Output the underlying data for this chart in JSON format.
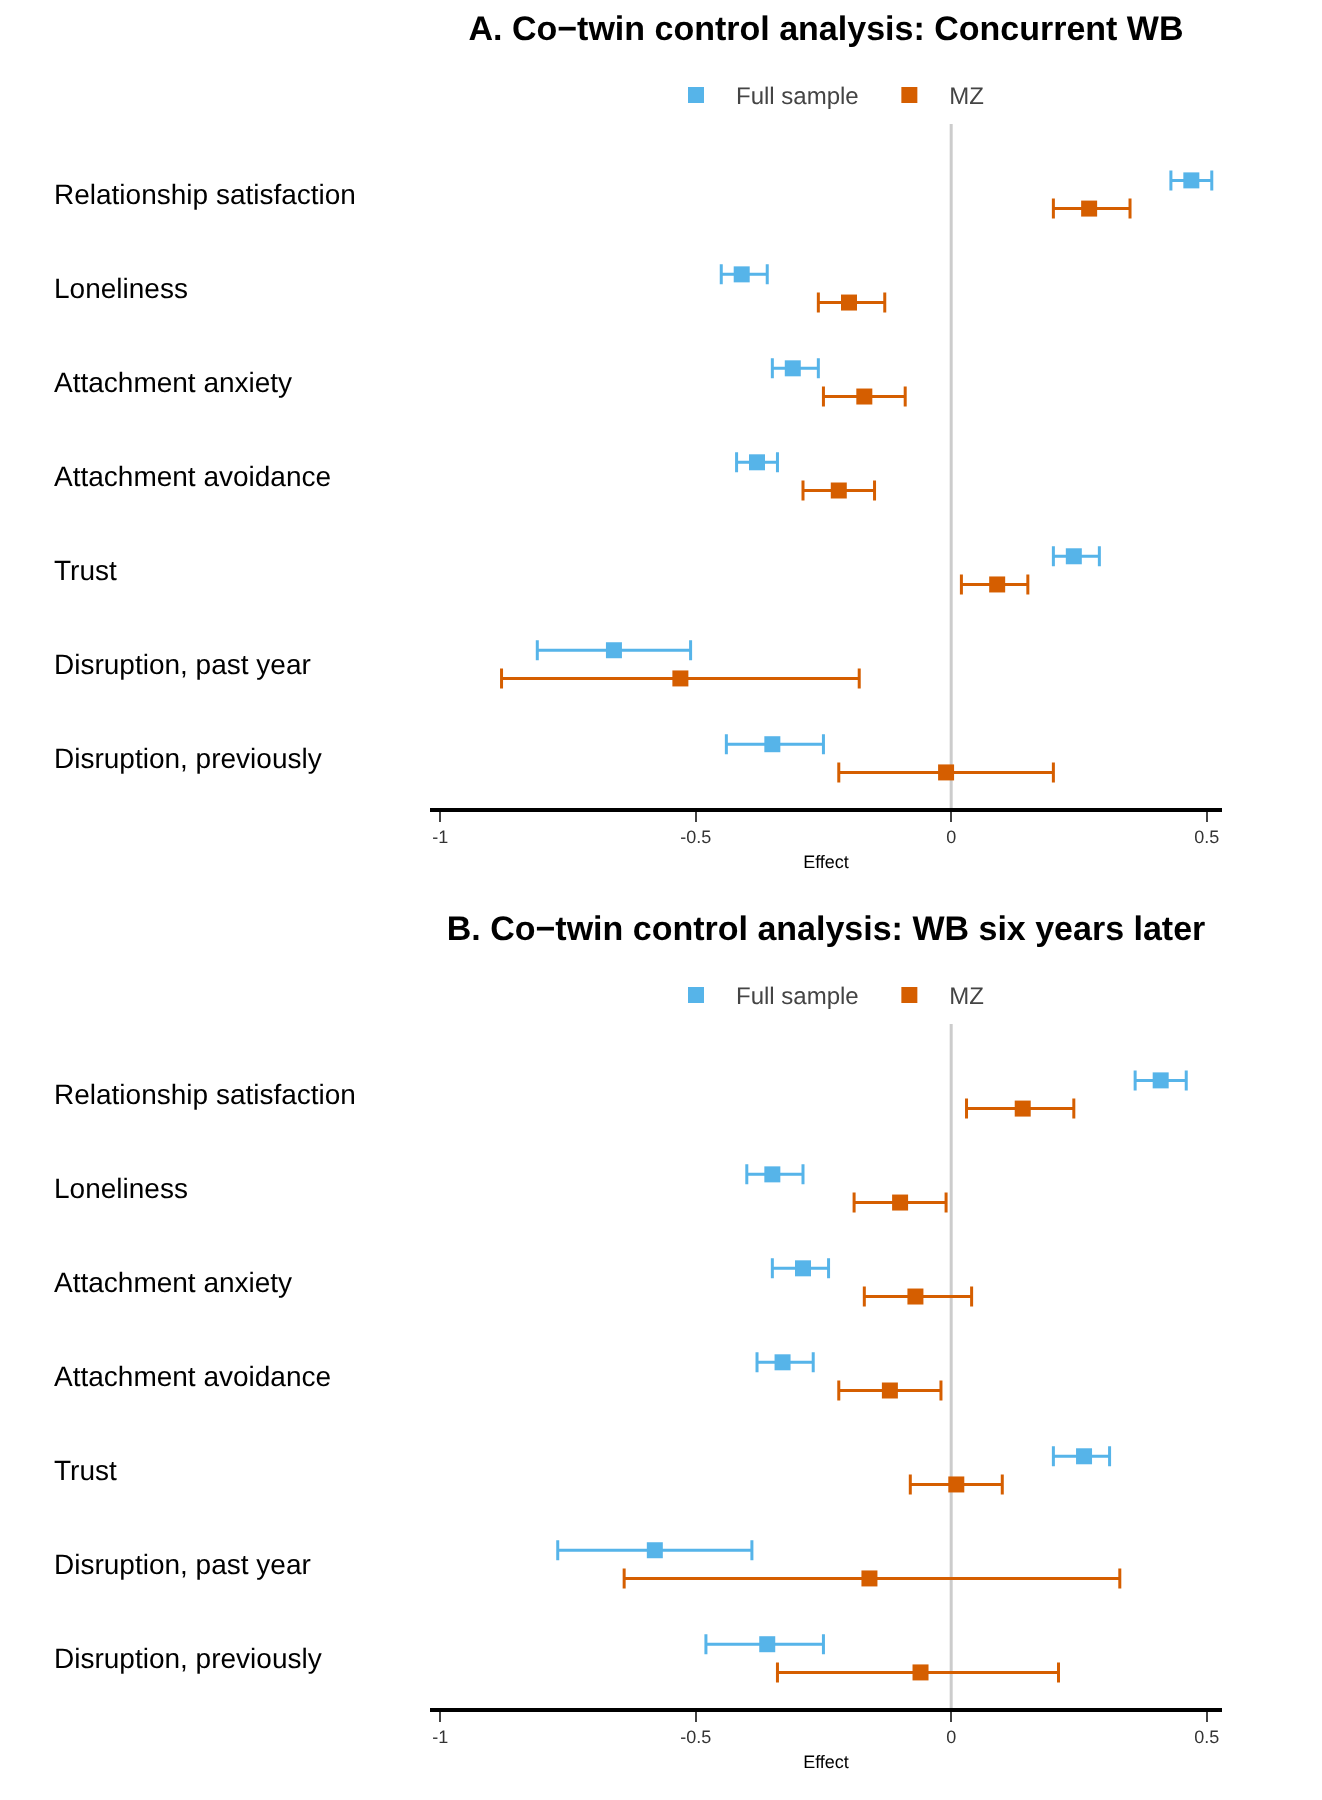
{
  "chart_data": [
    {
      "type": "scatter",
      "title": "A. Co−twin control analysis: Concurrent WB",
      "xlabel": "Effect",
      "categories": [
        "Relationship satisfaction",
        "Loneliness",
        "Attachment anxiety",
        "Attachment avoidance",
        "Trust",
        "Disruption, past year",
        "Disruption, previously"
      ],
      "orientation": "horizontal",
      "marker": "square",
      "legend": "top",
      "grid": false,
      "xlim": [
        -1.02,
        0.53
      ],
      "xticks": [
        -1,
        -0.5,
        0,
        0.5
      ],
      "ref_lines": [
        {
          "axis": "x",
          "value": 0,
          "color": "#cccccc"
        }
      ],
      "series": [
        {
          "name": "Full sample",
          "color": "#56b4e9",
          "values": [
            0.47,
            -0.41,
            -0.31,
            -0.38,
            0.24,
            -0.66,
            -0.35
          ],
          "errors": [
            [
              0.43,
              0.51
            ],
            [
              -0.45,
              -0.36
            ],
            [
              -0.35,
              -0.26
            ],
            [
              -0.42,
              -0.34
            ],
            [
              0.2,
              0.29
            ],
            [
              -0.81,
              -0.51
            ],
            [
              -0.44,
              -0.25
            ]
          ]
        },
        {
          "name": "MZ",
          "color": "#d55e00",
          "values": [
            0.27,
            -0.2,
            -0.17,
            -0.22,
            0.09,
            -0.53,
            -0.01
          ],
          "errors": [
            [
              0.2,
              0.35
            ],
            [
              -0.26,
              -0.13
            ],
            [
              -0.25,
              -0.09
            ],
            [
              -0.29,
              -0.15
            ],
            [
              0.02,
              0.15
            ],
            [
              -0.88,
              -0.18
            ],
            [
              -0.22,
              0.2
            ]
          ]
        }
      ]
    },
    {
      "type": "scatter",
      "title": "B. Co−twin control analysis: WB six years later",
      "xlabel": "Effect",
      "categories": [
        "Relationship satisfaction",
        "Loneliness",
        "Attachment anxiety",
        "Attachment avoidance",
        "Trust",
        "Disruption, past year",
        "Disruption, previously"
      ],
      "orientation": "horizontal",
      "marker": "square",
      "legend": "top",
      "grid": false,
      "xlim": [
        -1.02,
        0.53
      ],
      "xticks": [
        -1,
        -0.5,
        0,
        0.5
      ],
      "ref_lines": [
        {
          "axis": "x",
          "value": 0,
          "color": "#cccccc"
        }
      ],
      "series": [
        {
          "name": "Full sample",
          "color": "#56b4e9",
          "values": [
            0.41,
            -0.35,
            -0.29,
            -0.33,
            0.26,
            -0.58,
            -0.36
          ],
          "errors": [
            [
              0.36,
              0.46
            ],
            [
              -0.4,
              -0.29
            ],
            [
              -0.35,
              -0.24
            ],
            [
              -0.38,
              -0.27
            ],
            [
              0.2,
              0.31
            ],
            [
              -0.77,
              -0.39
            ],
            [
              -0.48,
              -0.25
            ]
          ]
        },
        {
          "name": "MZ",
          "color": "#d55e00",
          "values": [
            0.14,
            -0.1,
            -0.07,
            -0.12,
            0.01,
            -0.16,
            -0.06
          ],
          "errors": [
            [
              0.03,
              0.24
            ],
            [
              -0.19,
              -0.01
            ],
            [
              -0.17,
              0.04
            ],
            [
              -0.22,
              -0.02
            ],
            [
              -0.08,
              0.1
            ],
            [
              -0.64,
              0.33
            ],
            [
              -0.34,
              0.21
            ]
          ]
        }
      ]
    }
  ]
}
